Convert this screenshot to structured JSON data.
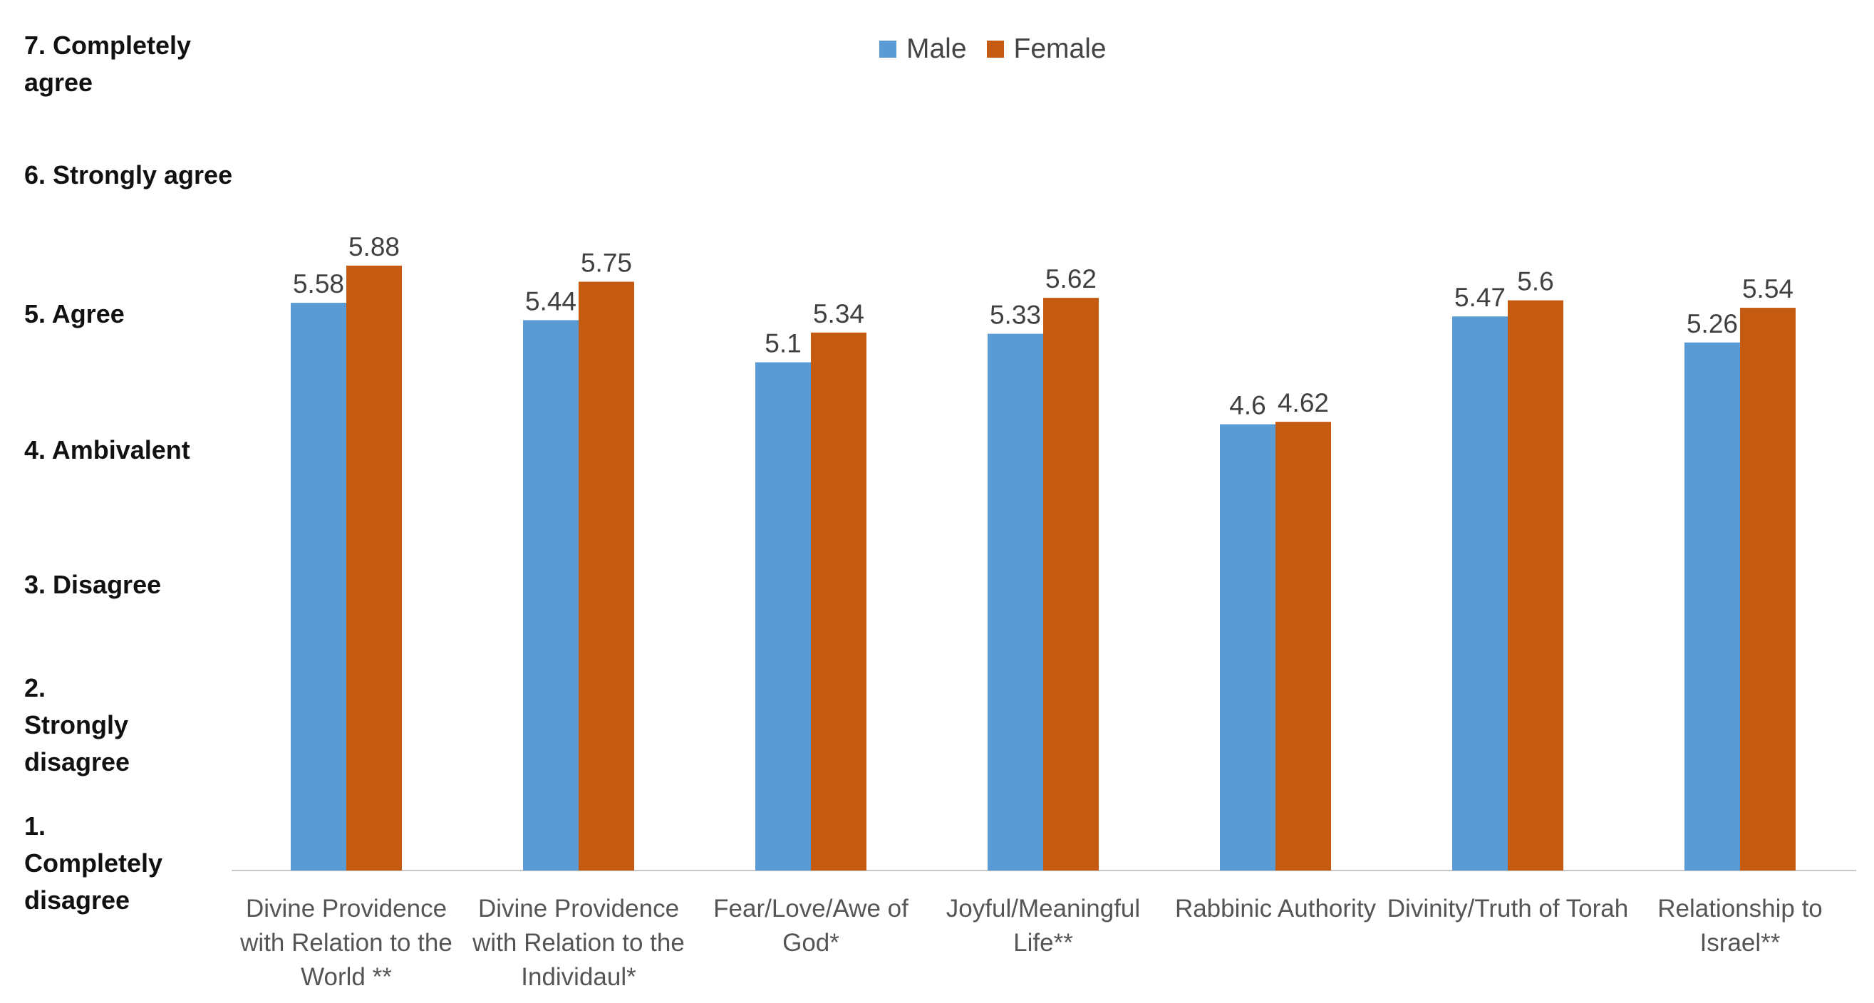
{
  "chart_data": {
    "type": "bar",
    "title": "",
    "xlabel": "",
    "ylabel": "",
    "ylim": [
      1,
      7
    ],
    "y_tick_labels": [
      {
        "value": 7,
        "label": "7. Completely\nagree"
      },
      {
        "value": 6,
        "label": "6. Strongly agree"
      },
      {
        "value": 5,
        "label": "5. Agree"
      },
      {
        "value": 4,
        "label": "4. Ambivalent"
      },
      {
        "value": 3,
        "label": "3. Disagree"
      },
      {
        "value": 2,
        "label": "2.\nStrongly\ndisagree"
      },
      {
        "value": 1,
        "label": "1.\nCompletely\ndisagree"
      }
    ],
    "categories": [
      "Divine Providence with Relation to the World **",
      "Divine Providence with Relation to the Individaul*",
      "Fear/Love/Awe of God*",
      "Joyful/Meaningful Life**",
      "Rabbinic Authority",
      "Divinity/Truth of Torah",
      "Relationship to Israel**"
    ],
    "series": [
      {
        "name": "Male",
        "color": "#5b9bd5",
        "values": [
          5.58,
          5.44,
          5.1,
          5.33,
          4.6,
          5.47,
          5.26
        ],
        "labels": [
          "5.58",
          "5.44",
          "5.1",
          "5.33",
          "4.6",
          "5.47",
          "5.26"
        ]
      },
      {
        "name": "Female",
        "color": "#c55a11",
        "values": [
          5.88,
          5.75,
          5.34,
          5.62,
          4.62,
          5.6,
          5.54
        ],
        "labels": [
          "5.88",
          "5.75",
          "5.34",
          "5.62",
          "4.62",
          "5.6",
          "5.54"
        ]
      }
    ],
    "legend_position": "top-center",
    "grid": false
  }
}
